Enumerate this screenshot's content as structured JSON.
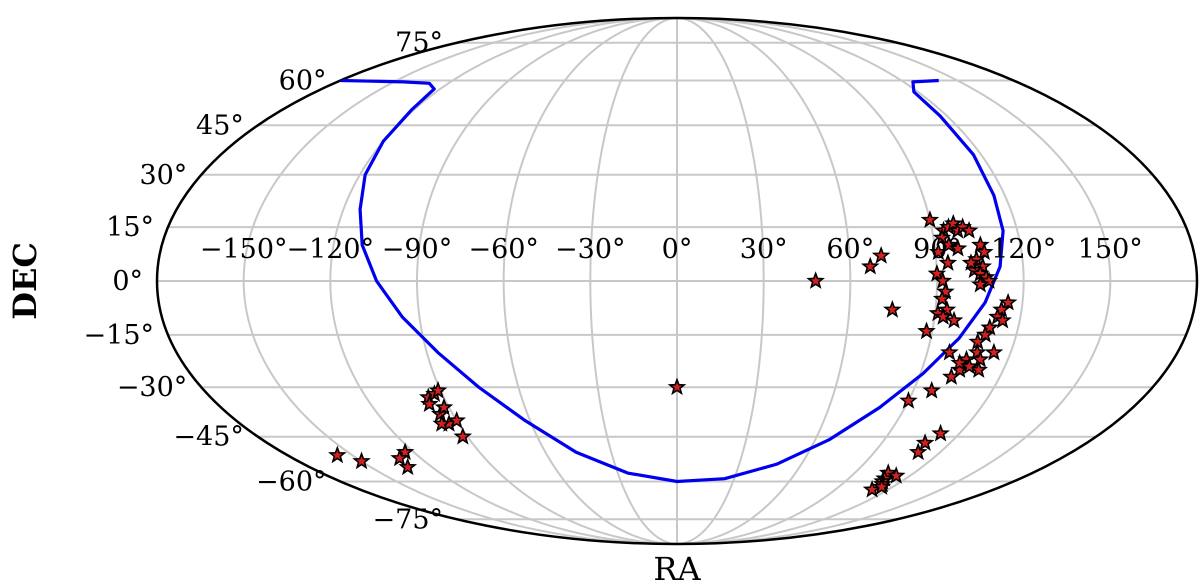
{
  "chart_data": {
    "type": "scatter",
    "projection": "mollweide",
    "title": "",
    "xlabel": "RA",
    "ylabel": "DEC",
    "grid": true,
    "xlim": [
      -180,
      180
    ],
    "ylim": [
      -90,
      90
    ],
    "x_ticks": [
      -150,
      -120,
      -90,
      -60,
      -30,
      0,
      30,
      60,
      90,
      120,
      150
    ],
    "x_tick_labels": [
      "−150°",
      "−120°",
      "−90°",
      "−60°",
      "−30°",
      "0°",
      "30°",
      "60°",
      "90°",
      "120°",
      "150°"
    ],
    "y_ticks": [
      75,
      60,
      45,
      30,
      15,
      0,
      -15,
      -30,
      -45,
      -60,
      -75
    ],
    "y_tick_labels": [
      "75°",
      "60°",
      "45°",
      "30°",
      "15°",
      "0°",
      "−15°",
      "−30°",
      "−45°",
      "−60°",
      "−75°"
    ],
    "colors": {
      "grid": "#c8c8c8",
      "outline": "#000000",
      "curve": "#0000ee",
      "marker_fill": "#d62020",
      "marker_edge": "#000000"
    },
    "series": [
      {
        "type": "line",
        "points": [
          [
            -180,
            60
          ],
          [
            -165,
            59.8
          ],
          [
            -145,
            59.5
          ],
          [
            -130,
            59
          ],
          [
            -123,
            57
          ],
          [
            -121,
            50
          ],
          [
            -120,
            40
          ],
          [
            -118,
            30
          ],
          [
            -114,
            20
          ],
          [
            -110,
            10
          ],
          [
            -104,
            0
          ],
          [
            -96,
            -10
          ],
          [
            -86,
            -20
          ],
          [
            -75,
            -30
          ],
          [
            -62,
            -40
          ],
          [
            -46,
            -50
          ],
          [
            -25,
            -57
          ],
          [
            0,
            -60
          ],
          [
            25,
            -59
          ],
          [
            48,
            -54
          ],
          [
            66,
            -46
          ],
          [
            80,
            -36
          ],
          [
            91,
            -26
          ],
          [
            100,
            -16
          ],
          [
            107,
            -6
          ],
          [
            112,
            4
          ],
          [
            115,
            14
          ],
          [
            116,
            24
          ],
          [
            117,
            36
          ],
          [
            117,
            48
          ],
          [
            118,
            56
          ],
          [
            125,
            59.5
          ],
          [
            140,
            60
          ]
        ]
      },
      {
        "type": "scatter",
        "marker": "star",
        "points": [
          [
            -124,
            -50
          ],
          [
            -130,
            -52
          ],
          [
            -157,
            -51
          ],
          [
            -132,
            -55
          ],
          [
            -150,
            -53
          ],
          [
            -96,
            -33
          ],
          [
            -93,
            -32
          ],
          [
            -91,
            -31
          ],
          [
            -97,
            -35
          ],
          [
            -95,
            -38
          ],
          [
            -92,
            -36
          ],
          [
            -94,
            -41
          ],
          [
            -90,
            -40
          ],
          [
            -97,
            -41
          ],
          [
            -92,
            -45
          ],
          [
            0,
            -30
          ],
          [
            48,
            0
          ],
          [
            67,
            4
          ],
          [
            71,
            7
          ],
          [
            75,
            -8
          ],
          [
            90,
            17
          ],
          [
            94,
            14
          ],
          [
            96,
            15
          ],
          [
            98,
            16
          ],
          [
            99,
            14
          ],
          [
            101,
            15
          ],
          [
            103,
            14
          ],
          [
            93,
            12
          ],
          [
            95,
            10
          ],
          [
            98,
            9
          ],
          [
            106,
            10
          ],
          [
            107,
            8
          ],
          [
            104,
            6
          ],
          [
            106,
            4
          ],
          [
            103,
            3
          ],
          [
            105,
            2
          ],
          [
            107,
            1
          ],
          [
            108,
            0
          ],
          [
            105,
            -1
          ],
          [
            102,
            5
          ],
          [
            90,
            2
          ],
          [
            92,
            0
          ],
          [
            93,
            -3
          ],
          [
            92,
            -5
          ],
          [
            94,
            -8
          ],
          [
            91,
            -9
          ],
          [
            93,
            -10
          ],
          [
            88,
            -14
          ],
          [
            97,
            -11
          ],
          [
            94,
            5
          ],
          [
            91,
            8
          ],
          [
            115,
            -6
          ],
          [
            113,
            -8
          ],
          [
            112,
            -10
          ],
          [
            114,
            -11
          ],
          [
            110,
            -13
          ],
          [
            109,
            -15
          ],
          [
            107,
            -17
          ],
          [
            108,
            -20
          ],
          [
            105,
            -22
          ],
          [
            110,
            -22
          ],
          [
            104,
            -25
          ],
          [
            103,
            -23
          ],
          [
            111,
            -25
          ],
          [
            107,
            -24
          ],
          [
            114,
            -20
          ],
          [
            98,
            -20
          ],
          [
            102,
            -27
          ],
          [
            97,
            -31
          ],
          [
            90,
            -34
          ],
          [
            112,
            -44
          ],
          [
            109,
            -47
          ],
          [
            110,
            -50
          ],
          [
            107,
            -57
          ],
          [
            109,
            -59
          ],
          [
            110,
            -60
          ],
          [
            113,
            -58
          ],
          [
            112,
            -61
          ],
          [
            111,
            -63
          ],
          [
            114,
            -62
          ]
        ]
      }
    ]
  }
}
